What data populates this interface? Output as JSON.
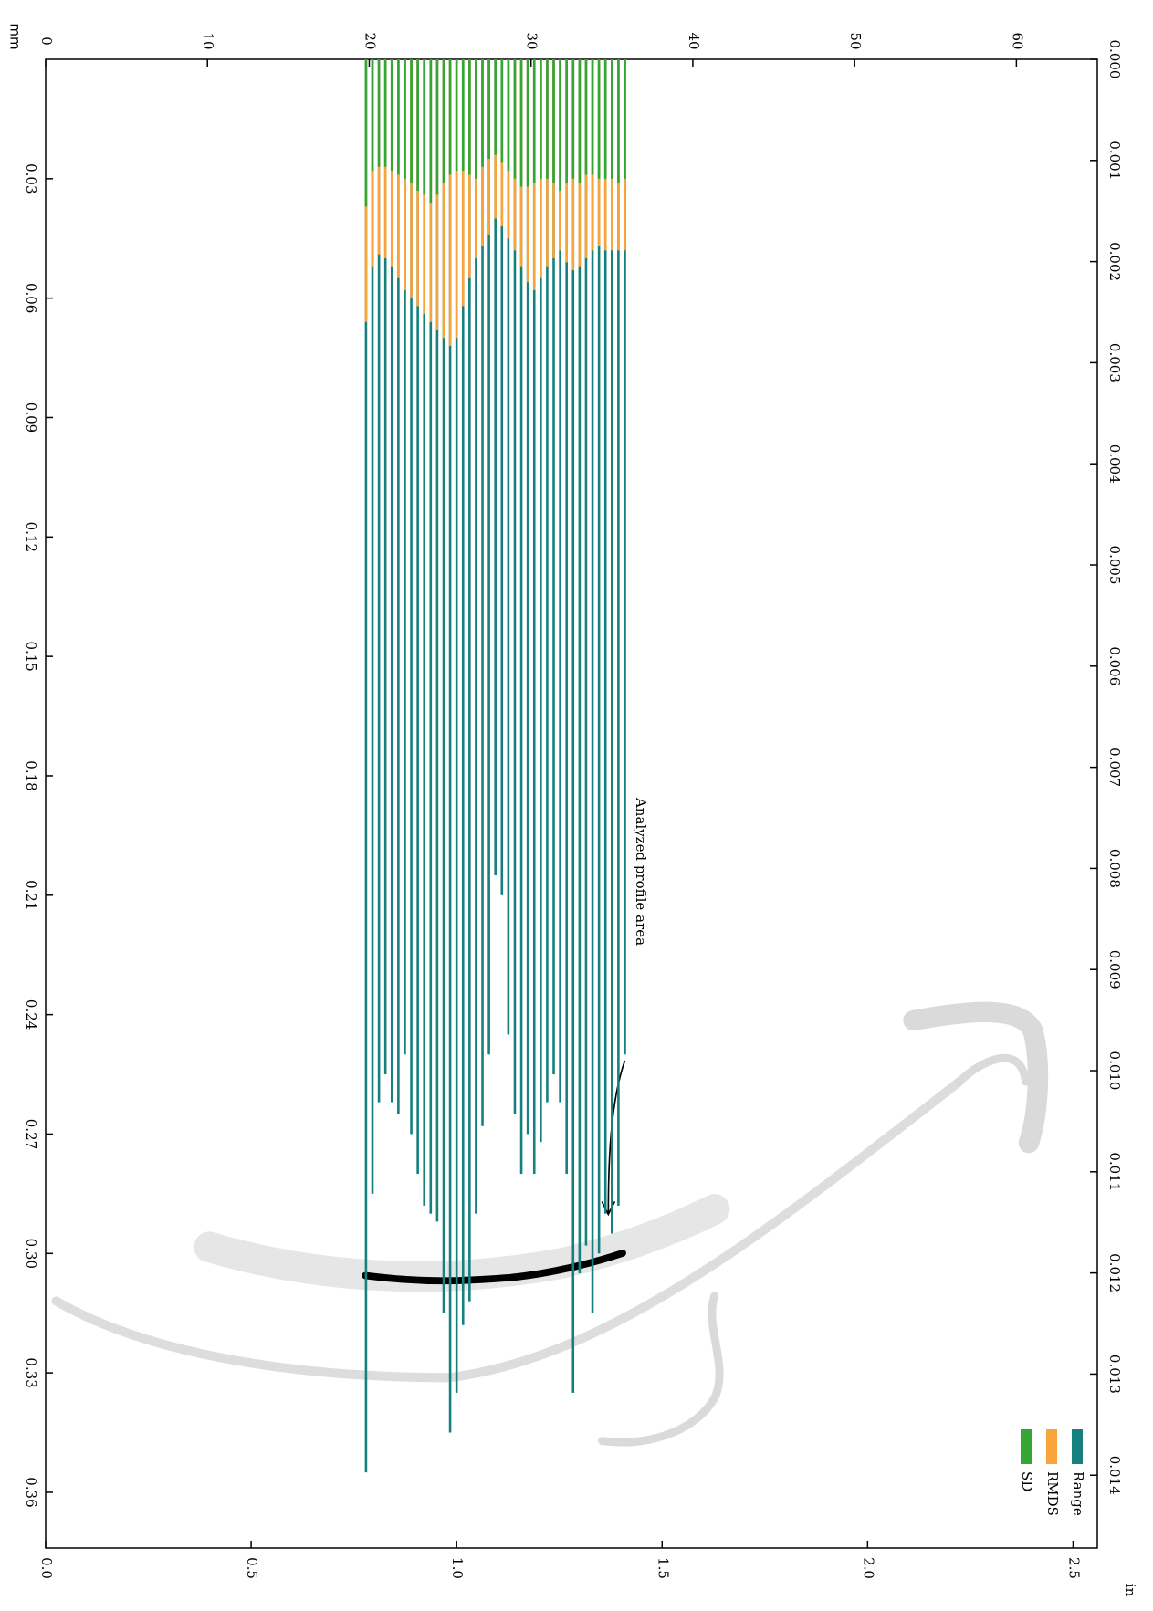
{
  "chart_data": {
    "type": "bar",
    "xlabel": "mm",
    "x2label": "in",
    "annotation": "Analyzed profile area",
    "x": [
      19.8,
      20.2,
      20.6,
      21.0,
      21.4,
      21.8,
      22.2,
      22.6,
      23.0,
      23.4,
      23.8,
      24.2,
      24.6,
      25.0,
      25.4,
      25.8,
      26.2,
      26.6,
      27.0,
      27.4,
      27.8,
      28.2,
      28.6,
      29.0,
      29.4,
      29.8,
      30.2,
      30.6,
      31.0,
      31.4,
      31.8,
      32.2,
      32.6,
      33.0,
      33.4,
      33.8,
      34.2,
      34.6,
      35.0,
      35.4,
      35.8
    ],
    "series": [
      {
        "name": "Range",
        "color": "#16807f",
        "values": [
          0.355,
          0.285,
          0.262,
          0.255,
          0.262,
          0.265,
          0.25,
          0.27,
          0.28,
          0.288,
          0.29,
          0.292,
          0.315,
          0.345,
          0.335,
          0.318,
          0.312,
          0.29,
          0.268,
          0.25,
          0.205,
          0.21,
          0.245,
          0.265,
          0.28,
          0.27,
          0.28,
          0.272,
          0.262,
          0.255,
          0.262,
          0.28,
          0.335,
          0.305,
          0.298,
          0.315,
          0.3,
          0.29,
          0.295,
          0.288,
          0.25
        ]
      },
      {
        "name": "RMDS",
        "color": "#f9a43a",
        "values": [
          0.066,
          0.052,
          0.049,
          0.05,
          0.052,
          0.055,
          0.058,
          0.06,
          0.062,
          0.064,
          0.066,
          0.068,
          0.07,
          0.072,
          0.07,
          0.062,
          0.055,
          0.05,
          0.047,
          0.044,
          0.04,
          0.042,
          0.045,
          0.048,
          0.052,
          0.056,
          0.058,
          0.055,
          0.052,
          0.05,
          0.048,
          0.051,
          0.053,
          0.052,
          0.05,
          0.048,
          0.047,
          0.048,
          0.048,
          0.048,
          0.048
        ]
      },
      {
        "name": "SD",
        "color": "#35a533",
        "values": [
          0.037,
          0.028,
          0.027,
          0.027,
          0.028,
          0.029,
          0.03,
          0.031,
          0.033,
          0.034,
          0.036,
          0.034,
          0.031,
          0.029,
          0.028,
          0.028,
          0.029,
          0.03,
          0.027,
          0.025,
          0.024,
          0.026,
          0.028,
          0.03,
          0.032,
          0.032,
          0.031,
          0.03,
          0.03,
          0.031,
          0.033,
          0.031,
          0.03,
          0.031,
          0.029,
          0.029,
          0.03,
          0.03,
          0.03,
          0.031,
          0.03
        ]
      }
    ],
    "xlim": [
      0,
      65
    ],
    "xticks": [
      0,
      10,
      20,
      30,
      40,
      50,
      60
    ],
    "x2lim": [
      0,
      2.559
    ],
    "x2ticks": [
      {
        "value": 0,
        "label": "0.0"
      },
      0.5,
      {
        "value": 1,
        "label": "1.0"
      },
      1.5,
      {
        "value": 2,
        "label": "2.0"
      },
      2.5
    ],
    "ylim": [
      0,
      0.374
    ],
    "yticks": [
      0.03,
      0.06,
      0.09,
      0.12,
      0.15,
      0.18,
      0.21,
      0.24,
      0.27,
      {
        "value": 0.3,
        "label": "0.30"
      },
      0.33,
      0.36
    ],
    "y2lim": [
      0,
      0.01472
    ],
    "y2ticks": [
      {
        "value": 0,
        "label": "0.000"
      },
      0.001,
      0.002,
      0.003,
      0.004,
      0.005,
      0.006,
      0.007,
      0.008,
      0.009,
      {
        "value": 0.01,
        "label": "0.010"
      },
      0.011,
      0.012,
      0.013,
      0.014
    ],
    "legend": "lower right"
  }
}
